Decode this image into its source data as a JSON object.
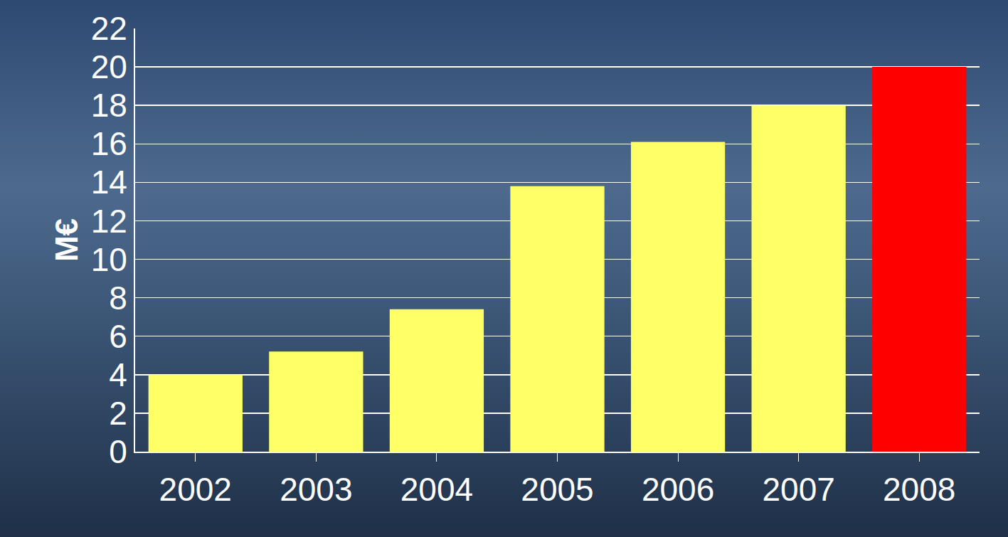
{
  "chart_data": {
    "type": "bar",
    "categories": [
      "2002",
      "2003",
      "2004",
      "2005",
      "2006",
      "2007",
      "2008"
    ],
    "values": [
      4,
      5.2,
      7.4,
      13.8,
      16.1,
      18,
      20
    ],
    "colors": [
      "#ffff66",
      "#ffff66",
      "#ffff66",
      "#ffff66",
      "#ffff66",
      "#ffff66",
      "#ff0000"
    ],
    "y_label": "M€",
    "ylim": [
      0,
      22
    ],
    "yticks": [
      0,
      2,
      4,
      6,
      8,
      10,
      12,
      14,
      16,
      18,
      20,
      22
    ],
    "grid": true
  }
}
